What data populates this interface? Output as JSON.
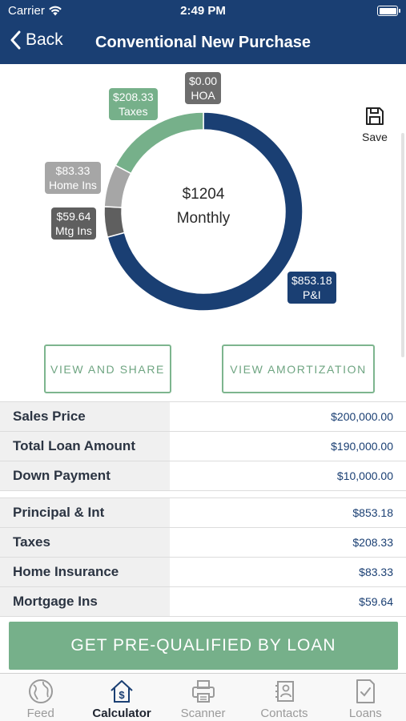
{
  "status": {
    "carrier": "Carrier",
    "time": "2:49 PM"
  },
  "nav": {
    "back_label": "Back",
    "title": "Conventional New Purchase"
  },
  "summary": {
    "amount": "$1204",
    "period": "Monthly"
  },
  "save_label": "Save",
  "colors": {
    "navy": "#1a3f73",
    "green": "#76b08a",
    "light_gray": "#a6a6a6",
    "dark_gray": "#5f5f5f",
    "hoa_gray": "#6d6d6d"
  },
  "chart_data": {
    "type": "pie",
    "categories": [
      "P&I",
      "Mtg Ins",
      "Home Ins",
      "Taxes",
      "HOA"
    ],
    "values": [
      853.18,
      59.64,
      83.33,
      208.33,
      0.0
    ],
    "labels": [
      {
        "value": "$853.18",
        "name": "P&I"
      },
      {
        "value": "$59.64",
        "name": "Mtg Ins"
      },
      {
        "value": "$83.33",
        "name": "Home Ins"
      },
      {
        "value": "$208.33",
        "name": "Taxes"
      },
      {
        "value": "$0.00",
        "name": "HOA"
      }
    ]
  },
  "buttons": {
    "view_share": "VIEW AND SHARE",
    "view_amortization": "VIEW AMORTIZATION"
  },
  "loan_table": [
    {
      "label": "Sales Price",
      "value": "$200,000.00"
    },
    {
      "label": "Total Loan Amount",
      "value": "$190,000.00"
    },
    {
      "label": "Down Payment",
      "value": "$10,000.00"
    }
  ],
  "payment_table": [
    {
      "label": "Principal & Int",
      "value": "$853.18"
    },
    {
      "label": "Taxes",
      "value": "$208.33"
    },
    {
      "label": "Home Insurance",
      "value": "$83.33"
    },
    {
      "label": "Mortgage Ins",
      "value": "$59.64"
    }
  ],
  "cta_label": "GET PRE-QUALIFIED BY LOAN",
  "tabs": [
    {
      "label": "Feed",
      "icon": "globe-icon"
    },
    {
      "label": "Calculator",
      "icon": "house-dollar-icon"
    },
    {
      "label": "Scanner",
      "icon": "printer-icon"
    },
    {
      "label": "Contacts",
      "icon": "contacts-icon"
    },
    {
      "label": "Loans",
      "icon": "document-check-icon"
    }
  ]
}
